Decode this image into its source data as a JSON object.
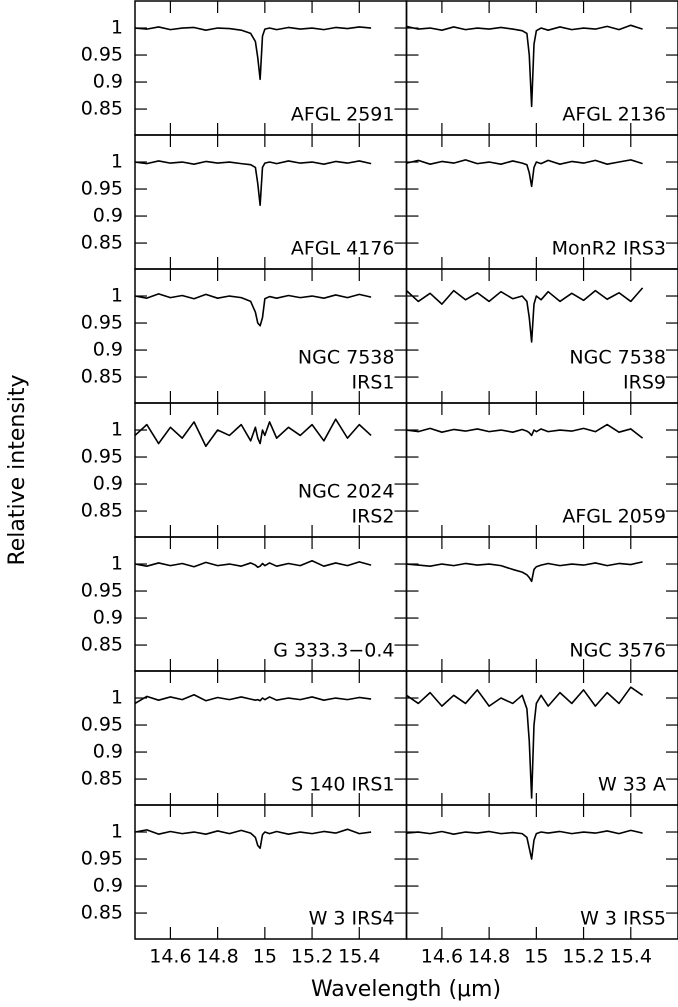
{
  "figure": {
    "xlabel": "Wavelength (μm)",
    "ylabel": "Relative intensity"
  },
  "chart_data": [
    {
      "type": "line",
      "label": [
        "AFGL 2591"
      ],
      "color": "#000000",
      "xlim": [
        14.45,
        15.6
      ],
      "ylim": [
        0.802,
        1.05
      ],
      "xticks": [
        14.6,
        14.8,
        15,
        15.2,
        15.4
      ],
      "yticks": [
        0.85,
        0.9,
        0.95,
        1
      ],
      "x": [
        14.45,
        14.5,
        14.55,
        14.6,
        14.65,
        14.7,
        14.75,
        14.8,
        14.85,
        14.9,
        14.94,
        14.96,
        14.97,
        14.98,
        14.99,
        15.0,
        15.02,
        15.05,
        15.1,
        15.15,
        15.2,
        15.25,
        15.3,
        15.35,
        15.4,
        15.45
      ],
      "values": [
        1.0,
        0.998,
        1.002,
        0.997,
        1.0,
        1.001,
        0.996,
        1.0,
        0.999,
        0.996,
        0.99,
        0.975,
        0.945,
        0.905,
        0.985,
        0.998,
        1.0,
        0.997,
        1.001,
        0.998,
        1.0,
        0.997,
        1.001,
        0.999,
        1.002,
        1.0
      ]
    },
    {
      "type": "line",
      "label": [
        "AFGL 2136"
      ],
      "color": "#000000",
      "xlim": [
        14.45,
        15.6
      ],
      "ylim": [
        0.802,
        1.05
      ],
      "xticks": [
        14.6,
        14.8,
        15,
        15.2,
        15.4
      ],
      "yticks": [
        0.85,
        0.9,
        0.95,
        1
      ],
      "x": [
        14.45,
        14.5,
        14.55,
        14.6,
        14.65,
        14.7,
        14.75,
        14.8,
        14.85,
        14.9,
        14.94,
        14.96,
        14.97,
        14.98,
        14.99,
        15.0,
        15.02,
        15.05,
        15.1,
        15.15,
        15.2,
        15.25,
        15.3,
        15.35,
        15.4,
        15.45
      ],
      "values": [
        1.003,
        0.998,
        1.0,
        0.996,
        1.002,
        0.997,
        1.0,
        0.998,
        1.001,
        0.998,
        0.995,
        0.99,
        0.95,
        0.855,
        0.97,
        0.995,
        1.0,
        0.996,
        1.002,
        0.997,
        1.0,
        0.998,
        1.003,
        0.997,
        1.005,
        0.998
      ]
    },
    {
      "type": "line",
      "label": [
        "AFGL 4176"
      ],
      "color": "#000000",
      "xlim": [
        14.45,
        15.6
      ],
      "ylim": [
        0.802,
        1.05
      ],
      "xticks": [
        14.6,
        14.8,
        15,
        15.2,
        15.4
      ],
      "yticks": [
        0.85,
        0.9,
        0.95,
        1
      ],
      "x": [
        14.45,
        14.5,
        14.55,
        14.6,
        14.65,
        14.7,
        14.75,
        14.8,
        14.85,
        14.9,
        14.94,
        14.96,
        14.97,
        14.98,
        14.99,
        15.0,
        15.02,
        15.05,
        15.1,
        15.15,
        15.2,
        15.25,
        15.3,
        15.35,
        15.4,
        15.45
      ],
      "values": [
        1.0,
        0.997,
        1.002,
        0.998,
        1.0,
        0.996,
        1.001,
        0.998,
        1.0,
        0.997,
        0.995,
        0.99,
        0.96,
        0.92,
        0.99,
        0.998,
        1.0,
        0.997,
        1.002,
        0.998,
        1.0,
        0.996,
        1.001,
        0.998,
        1.002,
        0.997
      ]
    },
    {
      "type": "line",
      "label": [
        "MonR2 IRS3"
      ],
      "color": "#000000",
      "xlim": [
        14.45,
        15.6
      ],
      "ylim": [
        0.802,
        1.05
      ],
      "xticks": [
        14.6,
        14.8,
        15,
        15.2,
        15.4
      ],
      "yticks": [
        0.85,
        0.9,
        0.95,
        1
      ],
      "x": [
        14.45,
        14.5,
        14.55,
        14.6,
        14.65,
        14.7,
        14.75,
        14.8,
        14.85,
        14.9,
        14.94,
        14.96,
        14.97,
        14.98,
        14.99,
        15.0,
        15.02,
        15.05,
        15.1,
        15.15,
        15.2,
        15.25,
        15.3,
        15.35,
        15.4,
        15.45
      ],
      "values": [
        0.998,
        1.003,
        0.996,
        1.001,
        0.998,
        1.004,
        0.997,
        1.0,
        0.996,
        1.002,
        0.998,
        0.995,
        0.98,
        0.955,
        0.99,
        1.0,
        0.997,
        1.003,
        0.996,
        1.001,
        0.998,
        1.003,
        0.996,
        1.0,
        1.004,
        0.997
      ]
    },
    {
      "type": "line",
      "label": [
        "NGC 7538",
        "IRS1"
      ],
      "color": "#000000",
      "xlim": [
        14.45,
        15.6
      ],
      "ylim": [
        0.802,
        1.05
      ],
      "xticks": [
        14.6,
        14.8,
        15,
        15.2,
        15.4
      ],
      "yticks": [
        0.85,
        0.9,
        0.95,
        1
      ],
      "x": [
        14.45,
        14.5,
        14.55,
        14.6,
        14.65,
        14.7,
        14.75,
        14.8,
        14.85,
        14.9,
        14.94,
        14.96,
        14.97,
        14.98,
        14.99,
        15.0,
        15.02,
        15.05,
        15.1,
        15.15,
        15.2,
        15.25,
        15.3,
        15.35,
        15.4,
        15.45
      ],
      "values": [
        1.0,
        0.996,
        1.004,
        0.997,
        1.001,
        0.995,
        1.003,
        0.996,
        1.0,
        0.997,
        0.99,
        0.97,
        0.95,
        0.945,
        0.96,
        0.995,
        0.999,
        0.996,
        1.001,
        0.997,
        1.0,
        0.996,
        1.002,
        0.997,
        1.003,
        0.998
      ]
    },
    {
      "type": "line",
      "label": [
        "NGC 7538",
        "IRS9"
      ],
      "color": "#000000",
      "xlim": [
        14.45,
        15.6
      ],
      "ylim": [
        0.802,
        1.05
      ],
      "xticks": [
        14.6,
        14.8,
        15,
        15.2,
        15.4
      ],
      "yticks": [
        0.85,
        0.9,
        0.95,
        1
      ],
      "x": [
        14.45,
        14.5,
        14.55,
        14.6,
        14.65,
        14.7,
        14.75,
        14.8,
        14.85,
        14.9,
        14.94,
        14.96,
        14.97,
        14.98,
        14.99,
        15.0,
        15.02,
        15.05,
        15.1,
        15.15,
        15.2,
        15.25,
        15.3,
        15.35,
        15.4,
        15.45
      ],
      "values": [
        1.01,
        0.99,
        1.005,
        0.985,
        1.01,
        0.993,
        1.006,
        0.99,
        1.008,
        0.995,
        1.0,
        0.99,
        0.96,
        0.915,
        0.985,
        1.0,
        0.993,
        1.008,
        0.99,
        1.005,
        0.992,
        1.01,
        0.994,
        1.006,
        0.99,
        1.015
      ]
    },
    {
      "type": "line",
      "label": [
        "NGC 2024",
        "IRS2"
      ],
      "color": "#000000",
      "xlim": [
        14.45,
        15.6
      ],
      "ylim": [
        0.802,
        1.05
      ],
      "xticks": [
        14.6,
        14.8,
        15,
        15.2,
        15.4
      ],
      "yticks": [
        0.85,
        0.9,
        0.95,
        1
      ],
      "x": [
        14.45,
        14.5,
        14.55,
        14.6,
        14.65,
        14.7,
        14.75,
        14.8,
        14.85,
        14.9,
        14.94,
        14.96,
        14.97,
        14.98,
        14.99,
        15.0,
        15.02,
        15.05,
        15.1,
        15.15,
        15.2,
        15.25,
        15.3,
        15.35,
        15.4,
        15.45
      ],
      "values": [
        0.99,
        1.01,
        0.975,
        1.005,
        0.985,
        1.015,
        0.97,
        1.0,
        0.99,
        1.01,
        0.98,
        1.005,
        0.985,
        0.975,
        1.0,
        0.99,
        1.015,
        0.985,
        1.005,
        0.99,
        1.01,
        0.98,
        1.02,
        0.985,
        1.01,
        0.99
      ]
    },
    {
      "type": "line",
      "label": [
        "AFGL 2059"
      ],
      "color": "#000000",
      "xlim": [
        14.45,
        15.6
      ],
      "ylim": [
        0.802,
        1.05
      ],
      "xticks": [
        14.6,
        14.8,
        15,
        15.2,
        15.4
      ],
      "yticks": [
        0.85,
        0.9,
        0.95,
        1
      ],
      "x": [
        14.45,
        14.5,
        14.55,
        14.6,
        14.65,
        14.7,
        14.75,
        14.8,
        14.85,
        14.9,
        14.94,
        14.96,
        14.97,
        14.98,
        14.99,
        15.0,
        15.02,
        15.05,
        15.1,
        15.15,
        15.2,
        15.25,
        15.3,
        15.35,
        15.4,
        15.45
      ],
      "values": [
        1.0,
        0.997,
        1.003,
        0.996,
        1.001,
        0.998,
        1.002,
        0.997,
        1.0,
        0.996,
        1.001,
        0.998,
        0.995,
        0.99,
        1.0,
        0.997,
        1.002,
        0.997,
        1.0,
        0.998,
        1.003,
        0.997,
        1.01,
        0.996,
        1.002,
        0.985
      ]
    },
    {
      "type": "line",
      "label": [
        "G 333.3−0.4"
      ],
      "color": "#000000",
      "xlim": [
        14.45,
        15.6
      ],
      "ylim": [
        0.802,
        1.05
      ],
      "xticks": [
        14.6,
        14.8,
        15,
        15.2,
        15.4
      ],
      "yticks": [
        0.85,
        0.9,
        0.95,
        1
      ],
      "x": [
        14.45,
        14.5,
        14.55,
        14.6,
        14.65,
        14.7,
        14.75,
        14.8,
        14.85,
        14.9,
        14.94,
        14.96,
        14.97,
        14.98,
        14.99,
        15.0,
        15.02,
        15.05,
        15.1,
        15.15,
        15.2,
        15.25,
        15.3,
        15.35,
        15.4,
        15.45
      ],
      "values": [
        1.0,
        0.996,
        1.002,
        0.997,
        1.001,
        0.995,
        1.003,
        0.997,
        1.0,
        0.996,
        1.002,
        0.998,
        0.994,
        0.996,
        1.001,
        0.997,
        1.002,
        0.996,
        1.001,
        0.997,
        1.006,
        0.996,
        1.002,
        0.997,
        1.004,
        0.998
      ]
    },
    {
      "type": "line",
      "label": [
        "NGC 3576"
      ],
      "color": "#000000",
      "xlim": [
        14.45,
        15.6
      ],
      "ylim": [
        0.802,
        1.05
      ],
      "xticks": [
        14.6,
        14.8,
        15,
        15.2,
        15.4
      ],
      "yticks": [
        0.85,
        0.9,
        0.95,
        1
      ],
      "x": [
        14.45,
        14.5,
        14.55,
        14.6,
        14.65,
        14.7,
        14.75,
        14.8,
        14.85,
        14.9,
        14.94,
        14.96,
        14.97,
        14.98,
        14.99,
        15.0,
        15.02,
        15.05,
        15.1,
        15.15,
        15.2,
        15.25,
        15.3,
        15.35,
        15.4,
        15.45
      ],
      "values": [
        1.0,
        0.998,
        0.996,
        1.0,
        0.997,
        1.001,
        0.998,
        1.0,
        0.997,
        0.99,
        0.985,
        0.98,
        0.975,
        0.968,
        0.99,
        0.995,
        0.998,
        1.001,
        0.997,
        1.0,
        0.998,
        1.002,
        0.997,
        1.001,
        0.999,
        1.004
      ]
    },
    {
      "type": "line",
      "label": [
        "S 140 IRS1"
      ],
      "color": "#000000",
      "xlim": [
        14.45,
        15.6
      ],
      "ylim": [
        0.802,
        1.05
      ],
      "xticks": [
        14.6,
        14.8,
        15,
        15.2,
        15.4
      ],
      "yticks": [
        0.85,
        0.9,
        0.95,
        1
      ],
      "x": [
        14.45,
        14.5,
        14.55,
        14.6,
        14.65,
        14.7,
        14.75,
        14.8,
        14.85,
        14.9,
        14.94,
        14.96,
        14.97,
        14.98,
        14.99,
        15.0,
        15.02,
        15.05,
        15.1,
        15.15,
        15.2,
        15.25,
        15.3,
        15.35,
        15.4,
        15.45
      ],
      "values": [
        0.99,
        1.003,
        0.996,
        1.002,
        0.997,
        1.006,
        0.995,
        1.001,
        0.997,
        1.002,
        0.998,
        0.996,
        0.997,
        0.995,
        1.0,
        0.997,
        1.002,
        0.996,
        1.0,
        0.997,
        1.002,
        0.996,
        1.0,
        0.997,
        1.001,
        0.998
      ]
    },
    {
      "type": "line",
      "label": [
        "W 33 A"
      ],
      "color": "#000000",
      "xlim": [
        14.45,
        15.6
      ],
      "ylim": [
        0.802,
        1.05
      ],
      "xticks": [
        14.6,
        14.8,
        15,
        15.2,
        15.4
      ],
      "yticks": [
        0.85,
        0.9,
        0.95,
        1
      ],
      "x": [
        14.45,
        14.5,
        14.55,
        14.6,
        14.65,
        14.7,
        14.75,
        14.8,
        14.85,
        14.9,
        14.94,
        14.96,
        14.97,
        14.98,
        14.99,
        15.0,
        15.02,
        15.05,
        15.1,
        15.15,
        15.2,
        15.25,
        15.3,
        15.35,
        15.4,
        15.45
      ],
      "values": [
        1.005,
        0.99,
        1.01,
        0.985,
        1.005,
        0.99,
        1.015,
        0.985,
        1.0,
        0.99,
        1.005,
        0.98,
        0.92,
        0.815,
        0.95,
        0.99,
        1.005,
        0.985,
        1.01,
        0.99,
        1.015,
        0.985,
        1.01,
        0.99,
        1.02,
        1.005
      ]
    },
    {
      "type": "line",
      "label": [
        "W 3 IRS4"
      ],
      "color": "#000000",
      "xlim": [
        14.45,
        15.6
      ],
      "ylim": [
        0.802,
        1.05
      ],
      "xticks": [
        14.6,
        14.8,
        15,
        15.2,
        15.4
      ],
      "yticks": [
        0.85,
        0.9,
        0.95,
        1
      ],
      "x": [
        14.45,
        14.5,
        14.55,
        14.6,
        14.65,
        14.7,
        14.75,
        14.8,
        14.85,
        14.9,
        14.94,
        14.96,
        14.97,
        14.98,
        14.99,
        15.0,
        15.02,
        15.05,
        15.1,
        15.15,
        15.2,
        15.25,
        15.3,
        15.35,
        15.4,
        15.45
      ],
      "values": [
        1.0,
        1.004,
        0.996,
        1.001,
        0.997,
        1.0,
        0.996,
        1.002,
        0.997,
        1.003,
        0.998,
        0.99,
        0.975,
        0.97,
        0.995,
        1.0,
        0.997,
        1.001,
        0.996,
        1.0,
        0.997,
        1.001,
        0.998,
        1.005,
        0.997,
        1.0
      ]
    },
    {
      "type": "line",
      "label": [
        "W 3 IRS5"
      ],
      "color": "#000000",
      "xlim": [
        14.45,
        15.6
      ],
      "ylim": [
        0.802,
        1.05
      ],
      "xticks": [
        14.6,
        14.8,
        15,
        15.2,
        15.4
      ],
      "yticks": [
        0.85,
        0.9,
        0.95,
        1
      ],
      "x": [
        14.45,
        14.5,
        14.55,
        14.6,
        14.65,
        14.7,
        14.75,
        14.8,
        14.85,
        14.9,
        14.94,
        14.96,
        14.97,
        14.98,
        14.99,
        15.0,
        15.02,
        15.05,
        15.1,
        15.15,
        15.2,
        15.25,
        15.3,
        15.35,
        15.4,
        15.45
      ],
      "values": [
        0.998,
        1.0,
        0.997,
        1.001,
        0.996,
        1.0,
        0.998,
        1.001,
        0.997,
        0.999,
        0.997,
        0.99,
        0.97,
        0.95,
        0.985,
        0.997,
        1.0,
        0.998,
        1.001,
        0.997,
        1.0,
        0.998,
        1.002,
        0.997,
        1.003,
        0.998
      ]
    }
  ]
}
